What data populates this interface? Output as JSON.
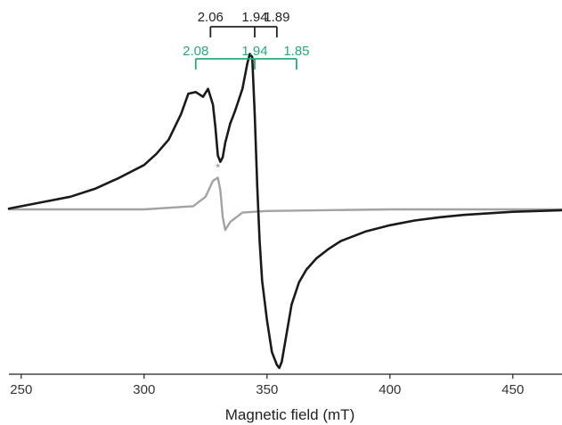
{
  "chart_data": {
    "type": "line",
    "xlabel": "Magnetic field (mT)",
    "ylabel": "",
    "xlim": [
      245,
      470
    ],
    "ylim": [
      -1.0,
      1.0
    ],
    "x_ticks": [
      250,
      300,
      350,
      400,
      450
    ],
    "x_tick_labels": [
      "250",
      "300",
      "350",
      "400",
      "450"
    ],
    "colors": {
      "black_trace": "#1a1a1a",
      "grey_trace": "#a3a3a5",
      "axis": "#222222",
      "g_black": "#222222",
      "g_green": "#2aa876"
    },
    "series": [
      {
        "color": "#1a1a1a",
        "x": [
          245,
          260,
          270,
          280,
          290,
          300,
          305,
          310,
          315,
          318,
          321,
          324,
          326,
          328,
          329,
          330,
          331,
          332,
          333,
          335,
          337,
          340,
          342,
          343,
          344,
          345,
          346,
          347,
          348,
          350,
          352,
          354,
          355,
          356,
          358,
          360,
          363,
          366,
          370,
          375,
          380,
          390,
          400,
          410,
          420,
          430,
          440,
          450,
          460,
          470
        ],
        "y": [
          0.005,
          0.05,
          0.08,
          0.13,
          0.2,
          0.28,
          0.35,
          0.44,
          0.6,
          0.73,
          0.74,
          0.71,
          0.76,
          0.66,
          0.52,
          0.34,
          0.3,
          0.33,
          0.42,
          0.54,
          0.62,
          0.76,
          0.92,
          0.98,
          0.96,
          0.6,
          0.15,
          -0.2,
          -0.45,
          -0.7,
          -0.9,
          -0.98,
          -1.0,
          -0.96,
          -0.78,
          -0.6,
          -0.46,
          -0.38,
          -0.31,
          -0.25,
          -0.2,
          -0.14,
          -0.1,
          -0.07,
          -0.05,
          -0.035,
          -0.025,
          -0.015,
          -0.01,
          -0.005
        ]
      },
      {
        "color": "#a3a3a5",
        "x": [
          245,
          300,
          320,
          325,
          328,
          330,
          331,
          332,
          333,
          335,
          340,
          350,
          400,
          470
        ],
        "y": [
          0.0,
          0.0,
          0.02,
          0.08,
          0.18,
          0.2,
          0.12,
          -0.05,
          -0.13,
          -0.08,
          -0.02,
          -0.01,
          0.0,
          0.0
        ]
      }
    ],
    "annotations": {
      "asterisk": {
        "text": "*",
        "x": 330,
        "y": 0.26
      },
      "g_values_black": {
        "labels": [
          "2.06",
          "1.94",
          "1.89"
        ],
        "x": [
          327,
          345,
          354
        ]
      },
      "g_values_green": {
        "labels": [
          "2.08",
          "1.94",
          "1.85"
        ],
        "x": [
          321,
          345,
          362
        ]
      }
    }
  }
}
